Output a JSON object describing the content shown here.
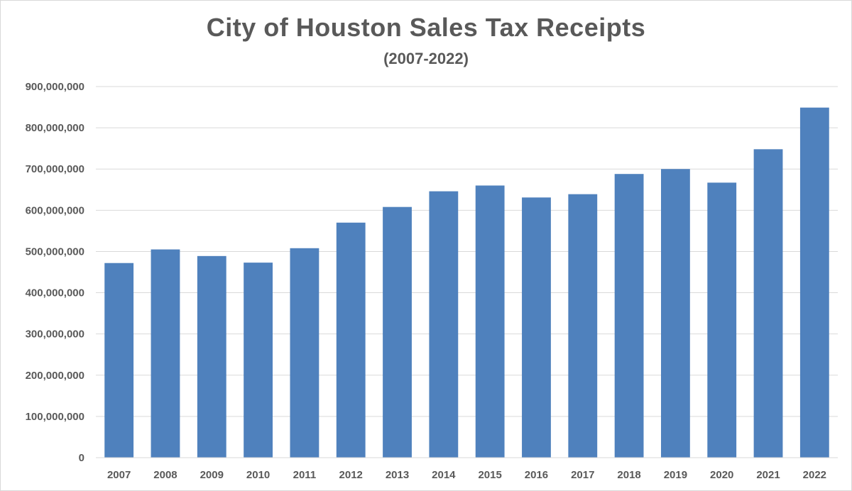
{
  "chart_data": {
    "type": "bar",
    "title": "City of Houston Sales Tax Receipts",
    "subtitle": "(2007-2022)",
    "xlabel": "",
    "ylabel": "",
    "categories": [
      "2007",
      "2008",
      "2009",
      "2010",
      "2011",
      "2012",
      "2013",
      "2014",
      "2015",
      "2016",
      "2017",
      "2018",
      "2019",
      "2020",
      "2021",
      "2022"
    ],
    "values": [
      472000000,
      505000000,
      489000000,
      473000000,
      508000000,
      570000000,
      608000000,
      646000000,
      660000000,
      631000000,
      639000000,
      688000000,
      700000000,
      667000000,
      748000000,
      849000000
    ],
    "ylim": [
      0,
      900000000
    ],
    "yticks": [
      0,
      100000000,
      200000000,
      300000000,
      400000000,
      500000000,
      600000000,
      700000000,
      800000000,
      900000000
    ],
    "ytick_labels": [
      "0",
      "100,000,000",
      "200,000,000",
      "300,000,000",
      "400,000,000",
      "500,000,000",
      "600,000,000",
      "700,000,000",
      "800,000,000",
      "900,000,000"
    ],
    "grid": true,
    "legend": "none",
    "bar_color": "#4f81bd",
    "grid_color": "#d9d9d9"
  }
}
